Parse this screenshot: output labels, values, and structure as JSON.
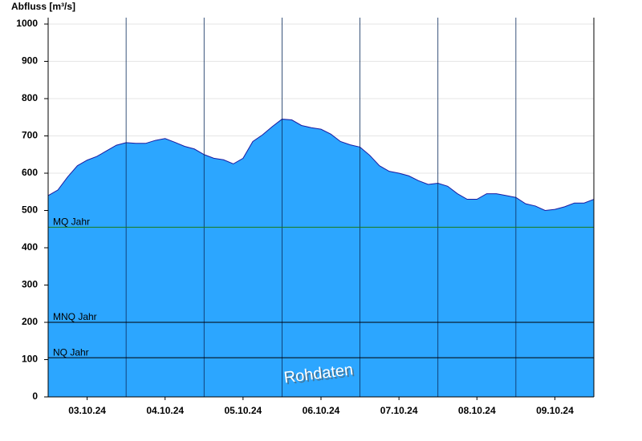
{
  "chart_data": {
    "type": "area",
    "title": "Abfluss [m³/s]",
    "x": [
      0,
      0.125,
      0.25,
      0.375,
      0.5,
      0.625,
      0.75,
      0.875,
      1,
      1.125,
      1.25,
      1.375,
      1.5,
      1.625,
      1.75,
      1.875,
      2,
      2.125,
      2.25,
      2.375,
      2.5,
      2.625,
      2.75,
      2.875,
      3,
      3.125,
      3.25,
      3.375,
      3.5,
      3.625,
      3.75,
      3.875,
      4,
      4.125,
      4.25,
      4.375,
      4.5,
      4.625,
      4.75,
      4.875,
      5,
      5.125,
      5.25,
      5.375,
      5.5,
      5.625,
      5.75,
      5.875,
      6,
      6.125,
      6.25,
      6.375,
      6.5,
      6.625,
      6.75,
      6.875,
      7
    ],
    "values": [
      540,
      555,
      590,
      620,
      635,
      645,
      660,
      675,
      682,
      680,
      680,
      688,
      693,
      683,
      672,
      665,
      650,
      640,
      636,
      625,
      640,
      685,
      703,
      725,
      745,
      743,
      728,
      722,
      718,
      705,
      685,
      676,
      670,
      648,
      620,
      605,
      600,
      593,
      580,
      570,
      573,
      565,
      545,
      530,
      530,
      545,
      545,
      540,
      535,
      518,
      512,
      500,
      503,
      510,
      520,
      520,
      530
    ],
    "color": "#2ca6ff",
    "line_color": "#1a1aa0",
    "xlim": [
      0,
      7
    ],
    "xticks": [
      {
        "value": 0.5,
        "label": "03.10.24"
      },
      {
        "value": 1.5,
        "label": "04.10.24"
      },
      {
        "value": 2.5,
        "label": "05.10.24"
      },
      {
        "value": 3.5,
        "label": "06.10.24"
      },
      {
        "value": 4.5,
        "label": "07.10.24"
      },
      {
        "value": 5.5,
        "label": "08.10.24"
      },
      {
        "value": 6.5,
        "label": "09.10.24"
      }
    ],
    "xgrid": [
      1,
      2,
      3,
      4,
      5,
      6
    ],
    "ylim": [
      0,
      1000
    ],
    "yticks": [
      0,
      100,
      200,
      300,
      400,
      500,
      600,
      700,
      800,
      900,
      1000
    ],
    "grid": true,
    "hlines": [
      {
        "label": "MQ Jahr",
        "value": 455,
        "color": "#1a7a1a"
      },
      {
        "label": "MNQ Jahr",
        "value": 200,
        "color": "#000000"
      },
      {
        "label": "NQ Jahr",
        "value": 105,
        "color": "#000000"
      }
    ],
    "annotation": "Rohdaten"
  }
}
